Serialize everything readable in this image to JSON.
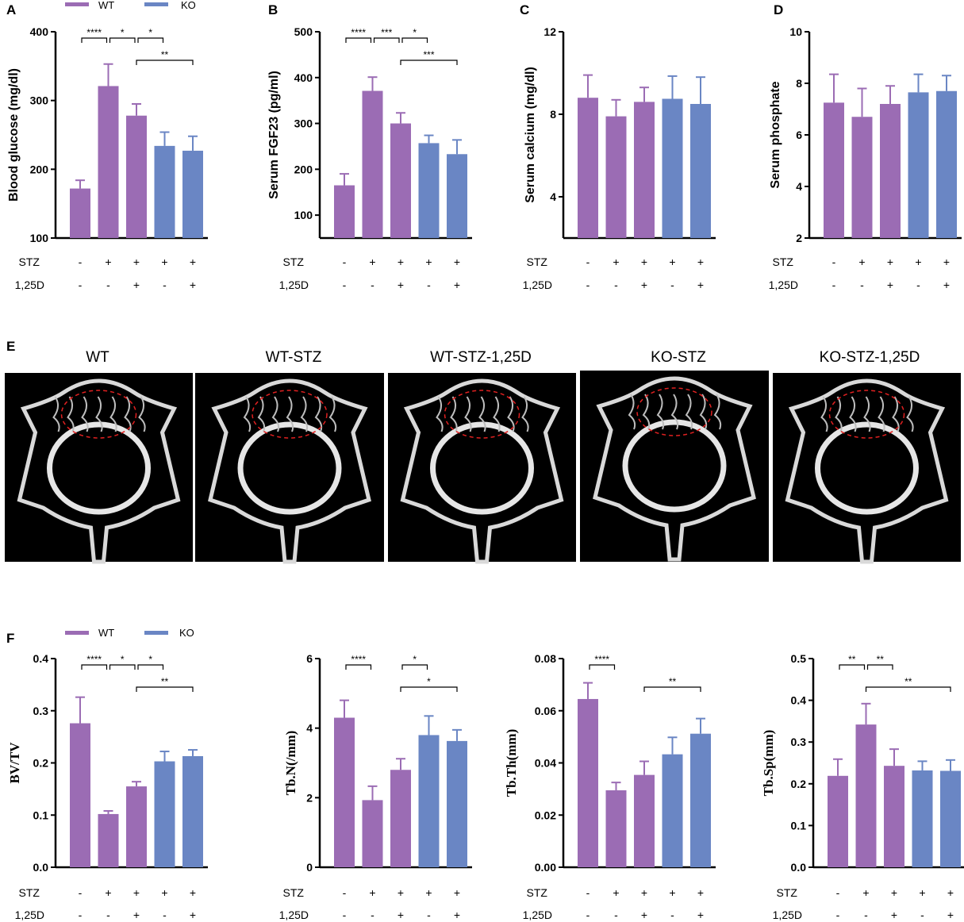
{
  "colors": {
    "wt": "#9B6CB4",
    "ko": "#6A86C4",
    "roi": "#E02020"
  },
  "legend_top": [
    {
      "label": "WT",
      "color": "#9B6CB4"
    },
    {
      "label": "KO",
      "color": "#6A86C4"
    }
  ],
  "legend_bottom": [
    {
      "label": "WT",
      "color": "#9B6CB4"
    },
    {
      "label": "KO",
      "color": "#6A86C4"
    }
  ],
  "conditions": {
    "stz_label": "STZ",
    "d_label": "1,25D",
    "stz": [
      "-",
      "+",
      "+",
      "+",
      "+"
    ],
    "d125": [
      "-",
      "-",
      "+",
      "-",
      "+"
    ]
  },
  "panel_e": {
    "letter": "E",
    "titles": [
      "WT",
      "WT-STZ",
      "WT-STZ-1,25D",
      "KO-STZ",
      "KO-STZ-1,25D"
    ]
  },
  "chart_data": [
    {
      "panel": "A",
      "type": "bar",
      "ylabel": "Blood glucose (mg/dl)",
      "ylim": [
        100,
        400
      ],
      "ticks": [
        "100",
        "200",
        "300",
        "400"
      ],
      "values": [
        172,
        321,
        278,
        234,
        227
      ],
      "errors": [
        12,
        32,
        17,
        20,
        21
      ],
      "groups": [
        "WT",
        "WT",
        "WT",
        "KO",
        "KO"
      ],
      "significance": [
        {
          "from": 1,
          "to": 2,
          "label": "****"
        },
        {
          "from": 2,
          "to": 3,
          "label": "*"
        },
        {
          "from": 3,
          "to": 4,
          "label": "*"
        },
        {
          "from": 3,
          "to": 5,
          "label": "**"
        }
      ]
    },
    {
      "panel": "B",
      "type": "bar",
      "ylabel": "Serum FGF23 (pg/ml)",
      "ylim": [
        50,
        500
      ],
      "ticks": [
        "100",
        "200",
        "300",
        "400",
        "500"
      ],
      "values": [
        165,
        371,
        300,
        257,
        233
      ],
      "errors": [
        25,
        30,
        23,
        17,
        31
      ],
      "groups": [
        "WT",
        "WT",
        "WT",
        "KO",
        "KO"
      ],
      "significance": [
        {
          "from": 1,
          "to": 2,
          "label": "****"
        },
        {
          "from": 2,
          "to": 3,
          "label": "***"
        },
        {
          "from": 3,
          "to": 4,
          "label": "*"
        },
        {
          "from": 3,
          "to": 5,
          "label": "***"
        }
      ]
    },
    {
      "panel": "C",
      "type": "bar",
      "ylabel": "Serum calcium (mg/dl)",
      "ylim": [
        2,
        12
      ],
      "ticks": [
        "4",
        "8",
        "12"
      ],
      "values": [
        8.8,
        7.9,
        8.6,
        8.75,
        8.5
      ],
      "errors": [
        1.1,
        0.8,
        0.7,
        1.1,
        1.3
      ],
      "groups": [
        "WT",
        "WT",
        "WT",
        "KO",
        "KO"
      ],
      "significance": []
    },
    {
      "panel": "D",
      "type": "bar",
      "ylabel": "Serum phosphate",
      "ylim": [
        2,
        10
      ],
      "ticks": [
        "2",
        "4",
        "6",
        "8",
        "10"
      ],
      "values": [
        7.25,
        6.7,
        7.2,
        7.65,
        7.7
      ],
      "errors": [
        1.1,
        1.1,
        0.7,
        0.7,
        0.6
      ],
      "groups": [
        "WT",
        "WT",
        "WT",
        "KO",
        "KO"
      ],
      "significance": []
    },
    {
      "panel": "F",
      "type": "bar",
      "ylabel": "BV/TV",
      "ylim": [
        0,
        0.4
      ],
      "ticks": [
        "0.0",
        "0.1",
        "0.2",
        "0.3",
        "0.4"
      ],
      "values": [
        0.276,
        0.102,
        0.155,
        0.203,
        0.213
      ],
      "errors": [
        0.05,
        0.006,
        0.009,
        0.019,
        0.012
      ],
      "groups": [
        "WT",
        "WT",
        "WT",
        "KO",
        "KO"
      ],
      "significance": [
        {
          "from": 1,
          "to": 2,
          "label": "****"
        },
        {
          "from": 2,
          "to": 3,
          "label": "*"
        },
        {
          "from": 3,
          "to": 4,
          "label": "*"
        },
        {
          "from": 3,
          "to": 5,
          "label": "**"
        }
      ]
    },
    {
      "panel": "",
      "type": "bar",
      "ylabel": "Tb.N(/mm)",
      "ylim": [
        0,
        6
      ],
      "ticks": [
        "0",
        "2",
        "4",
        "6"
      ],
      "values": [
        4.3,
        1.93,
        2.8,
        3.8,
        3.63
      ],
      "errors": [
        0.5,
        0.4,
        0.32,
        0.55,
        0.32
      ],
      "groups": [
        "WT",
        "WT",
        "WT",
        "KO",
        "KO"
      ],
      "significance": [
        {
          "from": 1,
          "to": 2,
          "label": "****"
        },
        {
          "from": 3,
          "to": 4,
          "label": "*"
        },
        {
          "from": 3,
          "to": 5,
          "label": "*"
        }
      ]
    },
    {
      "panel": "",
      "type": "bar",
      "ylabel": "Tb.Th(mm)",
      "ylim": [
        0,
        0.08
      ],
      "ticks": [
        "0.00",
        "0.02",
        "0.04",
        "0.06",
        "0.08"
      ],
      "values": [
        0.0645,
        0.0295,
        0.0354,
        0.0433,
        0.0512
      ],
      "errors": [
        0.0062,
        0.003,
        0.0052,
        0.0065,
        0.0058
      ],
      "groups": [
        "WT",
        "WT",
        "WT",
        "KO",
        "KO"
      ],
      "significance": [
        {
          "from": 1,
          "to": 2,
          "label": "****"
        },
        {
          "from": 3,
          "to": 5,
          "label": "**"
        }
      ]
    },
    {
      "panel": "",
      "type": "bar",
      "ylabel": "Tb.Sp(mm)",
      "ylim": [
        0,
        0.5
      ],
      "ticks": [
        "0.0",
        "0.1",
        "0.2",
        "0.3",
        "0.4",
        "0.5"
      ],
      "values": [
        0.219,
        0.342,
        0.243,
        0.232,
        0.231
      ],
      "errors": [
        0.04,
        0.05,
        0.04,
        0.022,
        0.026
      ],
      "groups": [
        "WT",
        "WT",
        "WT",
        "KO",
        "KO"
      ],
      "significance": [
        {
          "from": 1,
          "to": 2,
          "label": "**"
        },
        {
          "from": 2,
          "to": 3,
          "label": "**"
        },
        {
          "from": 2,
          "to": 5,
          "label": "**"
        }
      ]
    }
  ]
}
